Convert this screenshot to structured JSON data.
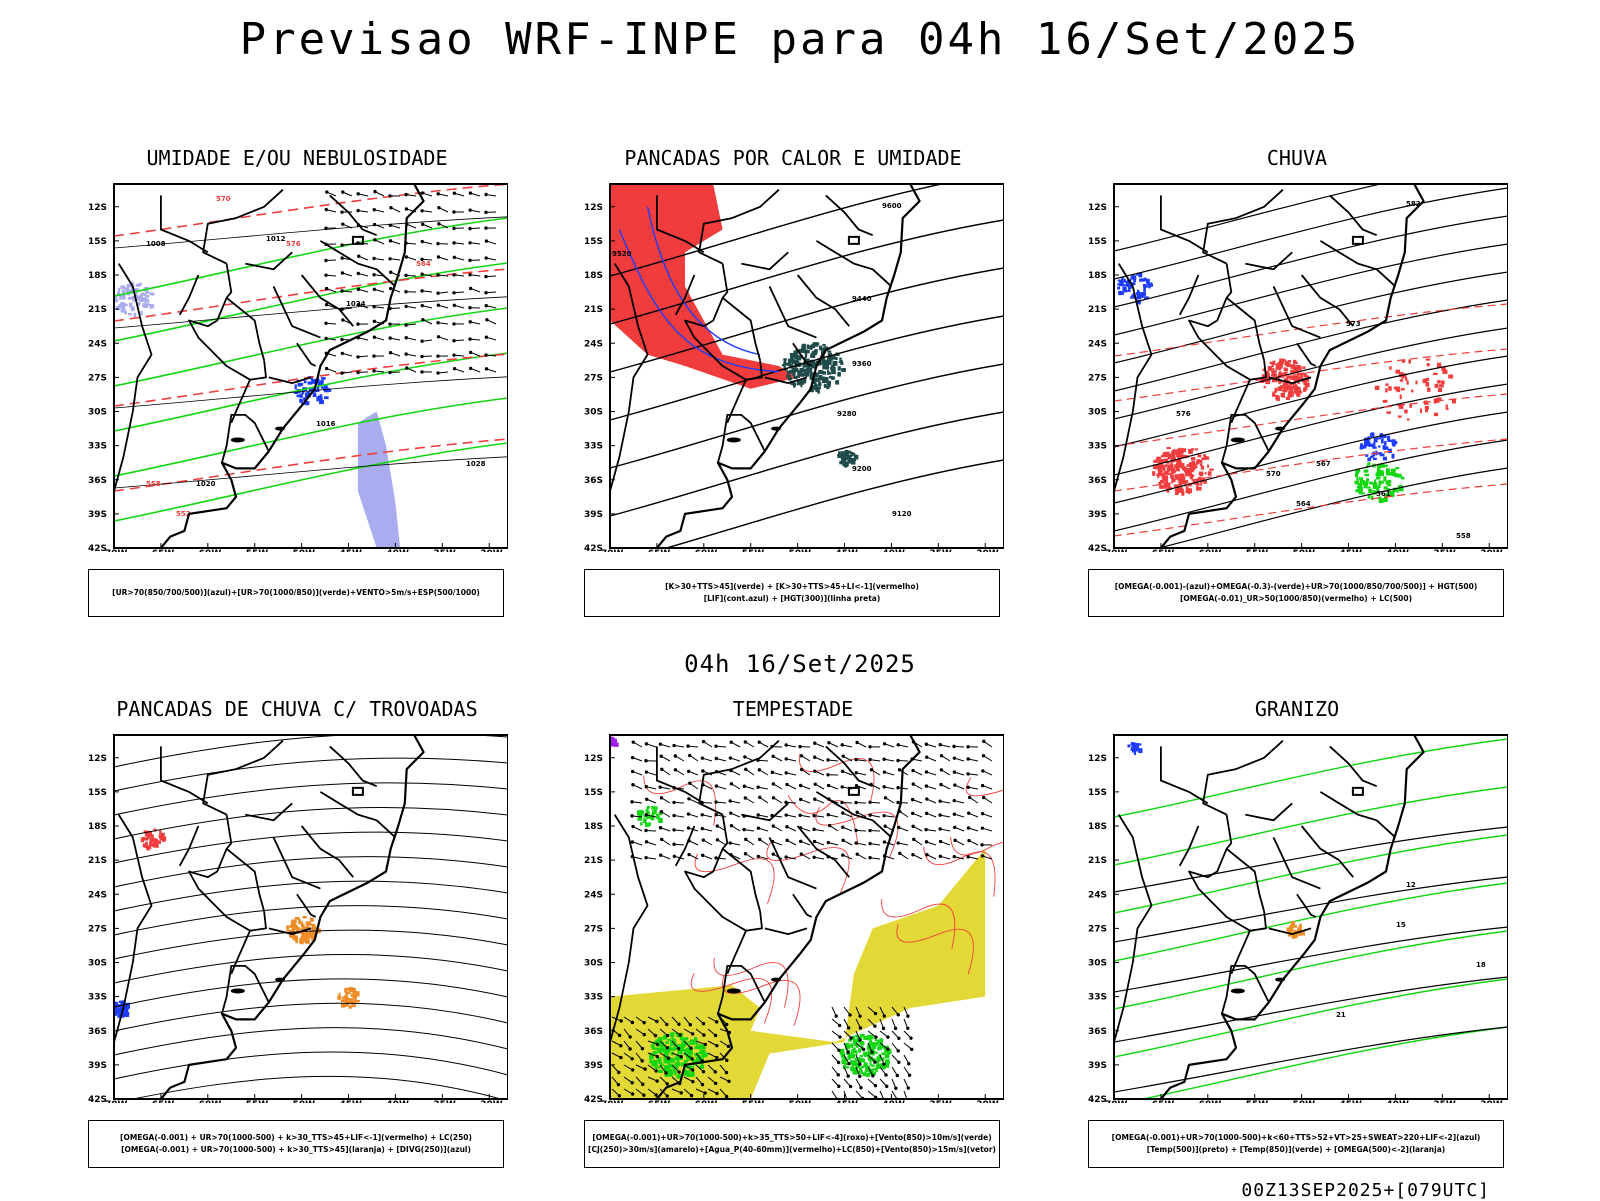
{
  "title": "Previsao WRF-INPE  para 04h 16/Set/2025",
  "mid_label": "04h 16/Set/2025",
  "footer": "00Z13SEP2025+[079UTC]",
  "lat_labels": [
    "12S",
    "15S",
    "18S",
    "21S",
    "24S",
    "27S",
    "30S",
    "33S",
    "36S",
    "39S",
    "42S"
  ],
  "lon_labels": [
    "70W",
    "65W",
    "60W",
    "55W",
    "50W",
    "45W",
    "40W",
    "35W",
    "30W"
  ],
  "colors": {
    "blue": "#1e3cff",
    "green": "#12d612",
    "red": "#f03c3c",
    "dark_teal": "#1f4a4a",
    "lavender": "#a9acee",
    "orange": "#f08c28",
    "purple": "#a020f0",
    "yellow": "#e3d936"
  },
  "panels": [
    {
      "title": "UMIDADE E/OU NEBULOSIDADE",
      "legend": [
        "[UR>70(850/700/500)](azul)+[UR>70(1000/850)](verde)+VENTO>5m/s+ESP(500/1000)"
      ],
      "labels": [
        "1008",
        "1012",
        "1016",
        "1020",
        "1024",
        "1028",
        "570",
        "576",
        "564",
        "558",
        "552"
      ]
    },
    {
      "title": "PANCADAS POR CALOR E UMIDADE",
      "legend": [
        "[K>30+TTS>45](verde) + [K>30+TTS>45+LI<-1](vermelho)",
        "[LIF](cont.azul) + [HGT(300)](linha preta)"
      ],
      "labels": [
        "9600",
        "9520",
        "9440",
        "9360",
        "9280",
        "9200",
        "9120"
      ]
    },
    {
      "title": "CHUVA",
      "legend": [
        "[OMEGA(-0.001)-(azul)+OMEGA(-0.3)-(verde)+UR>70(1000/850/700/500)] + HGT(500)",
        "[OMEGA(-0.01)_UR>50(1000/850)(vermelho) + LC(500)"
      ],
      "labels": [
        "582",
        "576",
        "573",
        "570",
        "567",
        "564",
        "561",
        "558"
      ]
    },
    {
      "title": "PANCADAS DE CHUVA C/ TROVOADAS",
      "legend": [
        "[OMEGA(-0.001) + UR>70(1000-500) + k>30_TTS>45+LIF<-1](vermelho) + LC(250)",
        "[OMEGA(-0.001) + UR>70(1000-500) + k>30_TTS>45](laranja) + [DIVG(250)](azul)"
      ],
      "labels": []
    },
    {
      "title": "TEMPESTADE",
      "legend": [
        "[OMEGA(-0.001)+UR>70(1000-500)+k>35_TTS>50+LIF<-4](roxo)+[Vento(850)>10m/s](verde)",
        "[CJ(250)>30m/s](amarelo)+[Agua_P(40-60mm)](vermelho)+LC(850)+[Vento(850)>15m/s](vetor)"
      ],
      "labels": []
    },
    {
      "title": "GRANIZO",
      "legend": [
        "[OMEGA(-0.001)+UR>70(1000-500)+k<60+TTS>52+VT>25+SWEAT>220+LIF<-2](azul)",
        "[Temp(500)](preto) + [Temp(850)](verde) + [OMEGA(500)<-2](laranja)"
      ],
      "labels": [
        "12",
        "15",
        "18",
        "21"
      ]
    }
  ]
}
